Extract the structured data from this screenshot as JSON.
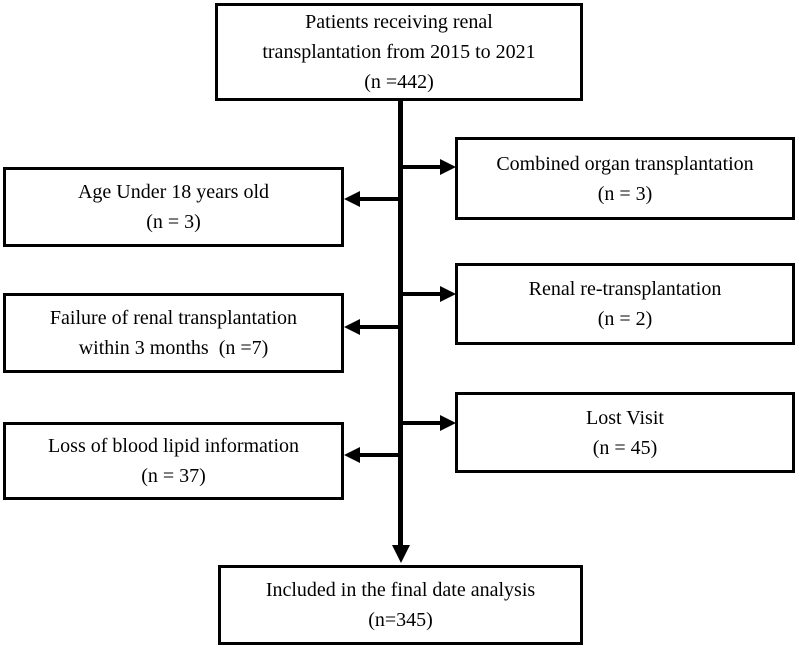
{
  "flowchart": {
    "type": "patient-flow-diagram",
    "start": {
      "lines": [
        "Patients receiving renal",
        "transplantation from 2015 to 2021",
        "(n =442)"
      ]
    },
    "right1": {
      "lines": [
        "Combined organ transplantation",
        "(n = 3)"
      ]
    },
    "left1": {
      "lines": [
        "Age Under 18 years old",
        "(n = 3)"
      ]
    },
    "right2": {
      "lines": [
        "Renal re-transplantation",
        "(n = 2)"
      ]
    },
    "left2": {
      "lines": [
        "Failure of renal transplantation",
        "within 3 months  (n =7)"
      ]
    },
    "right3": {
      "lines": [
        "Lost Visit",
        "(n = 45)"
      ]
    },
    "left3": {
      "lines": [
        "Loss of blood lipid information",
        "(n = 37)"
      ]
    },
    "end": {
      "lines": [
        "Included in the final date analysis",
        "(n=345)"
      ]
    }
  },
  "colors": {
    "line": "#000000",
    "text": "#000000",
    "background": "#ffffff"
  }
}
